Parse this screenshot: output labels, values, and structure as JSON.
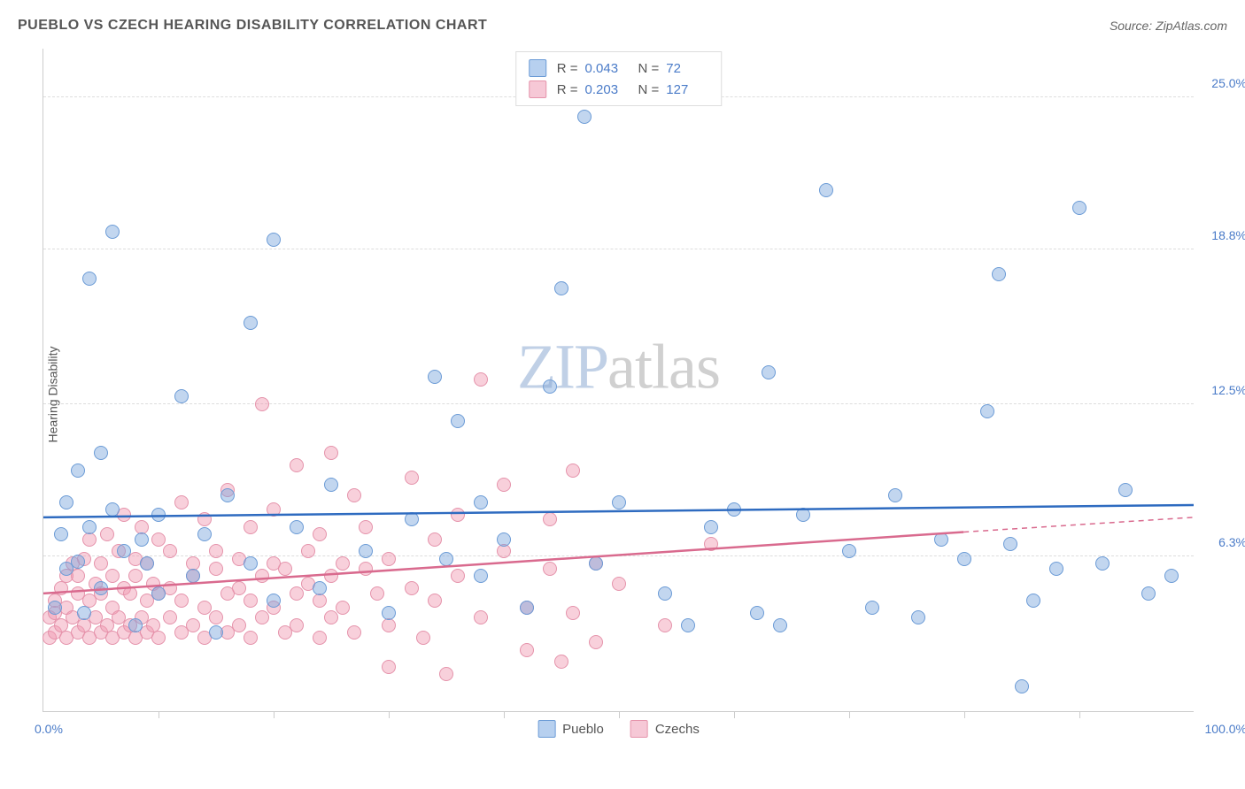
{
  "title": "PUEBLO VS CZECH HEARING DISABILITY CORRELATION CHART",
  "source_label": "Source: ZipAtlas.com",
  "ylabel": "Hearing Disability",
  "watermark": {
    "part1": "ZIP",
    "part2": "atlas"
  },
  "axes": {
    "xlim": [
      0,
      100
    ],
    "ylim": [
      0,
      27
    ],
    "xtick_left": "0.0%",
    "xtick_right": "100.0%",
    "xtick_color": "#4a7bc8",
    "x_minor_ticks": [
      10,
      20,
      30,
      40,
      50,
      60,
      70,
      80,
      90
    ],
    "yticks": [
      {
        "v": 6.3,
        "label": "6.3%"
      },
      {
        "v": 12.5,
        "label": "12.5%"
      },
      {
        "v": 18.8,
        "label": "18.8%"
      },
      {
        "v": 25.0,
        "label": "25.0%"
      }
    ],
    "ytick_color": "#4a7bc8",
    "grid_color": "#dddddd"
  },
  "series": {
    "pueblo": {
      "label": "Pueblo",
      "fill": "rgba(120,165,220,0.45)",
      "stroke": "#6b9bd6",
      "swatch_fill": "#b7d0ef",
      "swatch_border": "#6b9bd6",
      "R": "0.043",
      "N": "72",
      "stat_val_color": "#4a7bc8",
      "marker_size": 16,
      "trend": {
        "x1": 0,
        "y1": 7.9,
        "x2": 100,
        "y2": 8.4,
        "color": "#2e6bc0",
        "width": 2.5,
        "dash_after_x": 100
      }
    },
    "czechs": {
      "label": "Czechs",
      "fill": "rgba(240,150,175,0.45)",
      "stroke": "#e593ab",
      "swatch_fill": "#f6c8d6",
      "swatch_border": "#e593ab",
      "R": "0.203",
      "N": "127",
      "stat_val_color": "#4a7bc8",
      "marker_size": 16,
      "trend": {
        "x1": 0,
        "y1": 4.8,
        "x2": 80,
        "y2": 7.3,
        "color": "#d96a8e",
        "width": 2.5,
        "dash_after_x": 80,
        "dash_to_x": 100,
        "dash_to_y": 7.9
      }
    }
  },
  "pueblo_points": [
    [
      1,
      4.2
    ],
    [
      1.5,
      7.2
    ],
    [
      2,
      5.8
    ],
    [
      2,
      8.5
    ],
    [
      3,
      9.8
    ],
    [
      3,
      6.1
    ],
    [
      3.5,
      4.0
    ],
    [
      4,
      17.6
    ],
    [
      4,
      7.5
    ],
    [
      5,
      10.5
    ],
    [
      5,
      5.0
    ],
    [
      6,
      19.5
    ],
    [
      6,
      8.2
    ],
    [
      7,
      6.5
    ],
    [
      8,
      3.5
    ],
    [
      8.5,
      7.0
    ],
    [
      9,
      6.0
    ],
    [
      10,
      4.8
    ],
    [
      10,
      8.0
    ],
    [
      12,
      12.8
    ],
    [
      13,
      5.5
    ],
    [
      14,
      7.2
    ],
    [
      15,
      3.2
    ],
    [
      16,
      8.8
    ],
    [
      18,
      15.8
    ],
    [
      18,
      6.0
    ],
    [
      20,
      4.5
    ],
    [
      20,
      19.2
    ],
    [
      22,
      7.5
    ],
    [
      24,
      5.0
    ],
    [
      25,
      9.2
    ],
    [
      28,
      6.5
    ],
    [
      30,
      4.0
    ],
    [
      32,
      7.8
    ],
    [
      34,
      13.6
    ],
    [
      35,
      6.2
    ],
    [
      36,
      11.8
    ],
    [
      38,
      5.5
    ],
    [
      38,
      8.5
    ],
    [
      40,
      7.0
    ],
    [
      42,
      4.2
    ],
    [
      44,
      13.2
    ],
    [
      45,
      17.2
    ],
    [
      47,
      24.2
    ],
    [
      48,
      6.0
    ],
    [
      50,
      8.5
    ],
    [
      54,
      4.8
    ],
    [
      56,
      3.5
    ],
    [
      58,
      7.5
    ],
    [
      60,
      8.2
    ],
    [
      62,
      4.0
    ],
    [
      63,
      13.8
    ],
    [
      64,
      3.5
    ],
    [
      66,
      8.0
    ],
    [
      68,
      21.2
    ],
    [
      70,
      6.5
    ],
    [
      72,
      4.2
    ],
    [
      74,
      8.8
    ],
    [
      76,
      3.8
    ],
    [
      78,
      7.0
    ],
    [
      80,
      6.2
    ],
    [
      82,
      12.2
    ],
    [
      83,
      17.8
    ],
    [
      84,
      6.8
    ],
    [
      85,
      1.0
    ],
    [
      86,
      4.5
    ],
    [
      88,
      5.8
    ],
    [
      90,
      20.5
    ],
    [
      92,
      6.0
    ],
    [
      94,
      9.0
    ],
    [
      96,
      4.8
    ],
    [
      98,
      5.5
    ]
  ],
  "czech_points": [
    [
      0.5,
      3.0
    ],
    [
      0.5,
      3.8
    ],
    [
      1,
      3.2
    ],
    [
      1,
      4.0
    ],
    [
      1,
      4.5
    ],
    [
      1.5,
      3.5
    ],
    [
      1.5,
      5.0
    ],
    [
      2,
      3.0
    ],
    [
      2,
      4.2
    ],
    [
      2,
      5.5
    ],
    [
      2.5,
      3.8
    ],
    [
      2.5,
      6.0
    ],
    [
      3,
      3.2
    ],
    [
      3,
      4.8
    ],
    [
      3,
      5.5
    ],
    [
      3.5,
      3.5
    ],
    [
      3.5,
      6.2
    ],
    [
      4,
      3.0
    ],
    [
      4,
      4.5
    ],
    [
      4,
      7.0
    ],
    [
      4.5,
      3.8
    ],
    [
      4.5,
      5.2
    ],
    [
      5,
      3.2
    ],
    [
      5,
      6.0
    ],
    [
      5,
      4.8
    ],
    [
      5.5,
      3.5
    ],
    [
      5.5,
      7.2
    ],
    [
      6,
      3.0
    ],
    [
      6,
      5.5
    ],
    [
      6,
      4.2
    ],
    [
      6.5,
      3.8
    ],
    [
      6.5,
      6.5
    ],
    [
      7,
      3.2
    ],
    [
      7,
      5.0
    ],
    [
      7,
      8.0
    ],
    [
      7.5,
      3.5
    ],
    [
      7.5,
      4.8
    ],
    [
      8,
      3.0
    ],
    [
      8,
      6.2
    ],
    [
      8,
      5.5
    ],
    [
      8.5,
      3.8
    ],
    [
      8.5,
      7.5
    ],
    [
      9,
      3.2
    ],
    [
      9,
      4.5
    ],
    [
      9,
      6.0
    ],
    [
      9.5,
      3.5
    ],
    [
      9.5,
      5.2
    ],
    [
      10,
      3.0
    ],
    [
      10,
      7.0
    ],
    [
      10,
      4.8
    ],
    [
      11,
      3.8
    ],
    [
      11,
      6.5
    ],
    [
      11,
      5.0
    ],
    [
      12,
      3.2
    ],
    [
      12,
      8.5
    ],
    [
      12,
      4.5
    ],
    [
      13,
      3.5
    ],
    [
      13,
      6.0
    ],
    [
      13,
      5.5
    ],
    [
      14,
      3.0
    ],
    [
      14,
      7.8
    ],
    [
      14,
      4.2
    ],
    [
      15,
      3.8
    ],
    [
      15,
      5.8
    ],
    [
      15,
      6.5
    ],
    [
      16,
      3.2
    ],
    [
      16,
      4.8
    ],
    [
      16,
      9.0
    ],
    [
      17,
      3.5
    ],
    [
      17,
      6.2
    ],
    [
      17,
      5.0
    ],
    [
      18,
      3.0
    ],
    [
      18,
      7.5
    ],
    [
      18,
      4.5
    ],
    [
      19,
      12.5
    ],
    [
      19,
      5.5
    ],
    [
      19,
      3.8
    ],
    [
      20,
      6.0
    ],
    [
      20,
      4.2
    ],
    [
      20,
      8.2
    ],
    [
      21,
      3.2
    ],
    [
      21,
      5.8
    ],
    [
      22,
      10.0
    ],
    [
      22,
      4.8
    ],
    [
      22,
      3.5
    ],
    [
      23,
      6.5
    ],
    [
      23,
      5.2
    ],
    [
      24,
      3.0
    ],
    [
      24,
      7.2
    ],
    [
      24,
      4.5
    ],
    [
      25,
      10.5
    ],
    [
      25,
      5.5
    ],
    [
      25,
      3.8
    ],
    [
      26,
      6.0
    ],
    [
      26,
      4.2
    ],
    [
      27,
      8.8
    ],
    [
      27,
      3.2
    ],
    [
      28,
      5.8
    ],
    [
      28,
      7.5
    ],
    [
      29,
      4.8
    ],
    [
      30,
      3.5
    ],
    [
      30,
      6.2
    ],
    [
      30,
      1.8
    ],
    [
      32,
      5.0
    ],
    [
      32,
      9.5
    ],
    [
      33,
      3.0
    ],
    [
      34,
      7.0
    ],
    [
      34,
      4.5
    ],
    [
      35,
      1.5
    ],
    [
      36,
      5.5
    ],
    [
      36,
      8.0
    ],
    [
      38,
      13.5
    ],
    [
      38,
      3.8
    ],
    [
      40,
      6.5
    ],
    [
      40,
      9.2
    ],
    [
      42,
      4.2
    ],
    [
      42,
      2.5
    ],
    [
      44,
      5.8
    ],
    [
      44,
      7.8
    ],
    [
      45,
      2.0
    ],
    [
      46,
      9.8
    ],
    [
      46,
      4.0
    ],
    [
      48,
      2.8
    ],
    [
      48,
      6.0
    ],
    [
      50,
      5.2
    ],
    [
      54,
      3.5
    ],
    [
      58,
      6.8
    ]
  ]
}
